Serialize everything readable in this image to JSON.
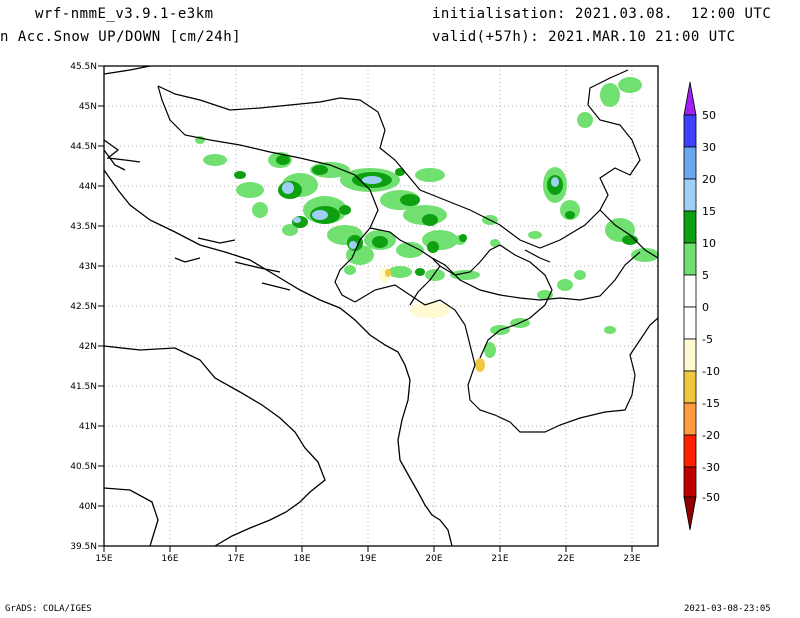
{
  "header": {
    "model": "wrf-nmmE_v3.9.1-e3km",
    "field": "n Acc.Snow UP/DOWN [cm/24h]",
    "init": "initialisation: 2021.03.08.  12:00 UTC",
    "valid": "valid(+57h): 2021.MAR.10 21:00 UTC"
  },
  "footer": {
    "credit": "GrADS: COLA/IGES",
    "timestamp": "2021-03-08-23:05"
  },
  "axes": {
    "lat_labels": [
      "45.5N",
      "45N",
      "44.5N",
      "44N",
      "43.5N",
      "43N",
      "42.5N",
      "42N",
      "41.5N",
      "41N",
      "40.5N",
      "40N",
      "39.5N"
    ],
    "lon_labels": [
      "15E",
      "16E",
      "17E",
      "18E",
      "19E",
      "20E",
      "21E",
      "22E",
      "23E"
    ]
  },
  "colorbar": {
    "labels": [
      "50",
      "30",
      "20",
      "15",
      "10",
      "5",
      "0",
      "-5",
      "-10",
      "-15",
      "-20",
      "-30",
      "-50"
    ],
    "colors": {
      "top_arrow": "#a020f0",
      "c30_50": "#4040ff",
      "c20_30": "#6aa8f0",
      "c15_20": "#9fcff5",
      "c10_15": "#0ea010",
      "c5_10": "#70e070",
      "c0_5": "#ffffff",
      "cm5_0": "#ffffff",
      "cm10_m5": "#fffad0",
      "cm15_m10": "#f0c840",
      "cm20_m15": "#ff9a40",
      "cm30_m20": "#ff2000",
      "cm50_m30": "#c00000",
      "bottom_arrow": "#900000"
    }
  }
}
